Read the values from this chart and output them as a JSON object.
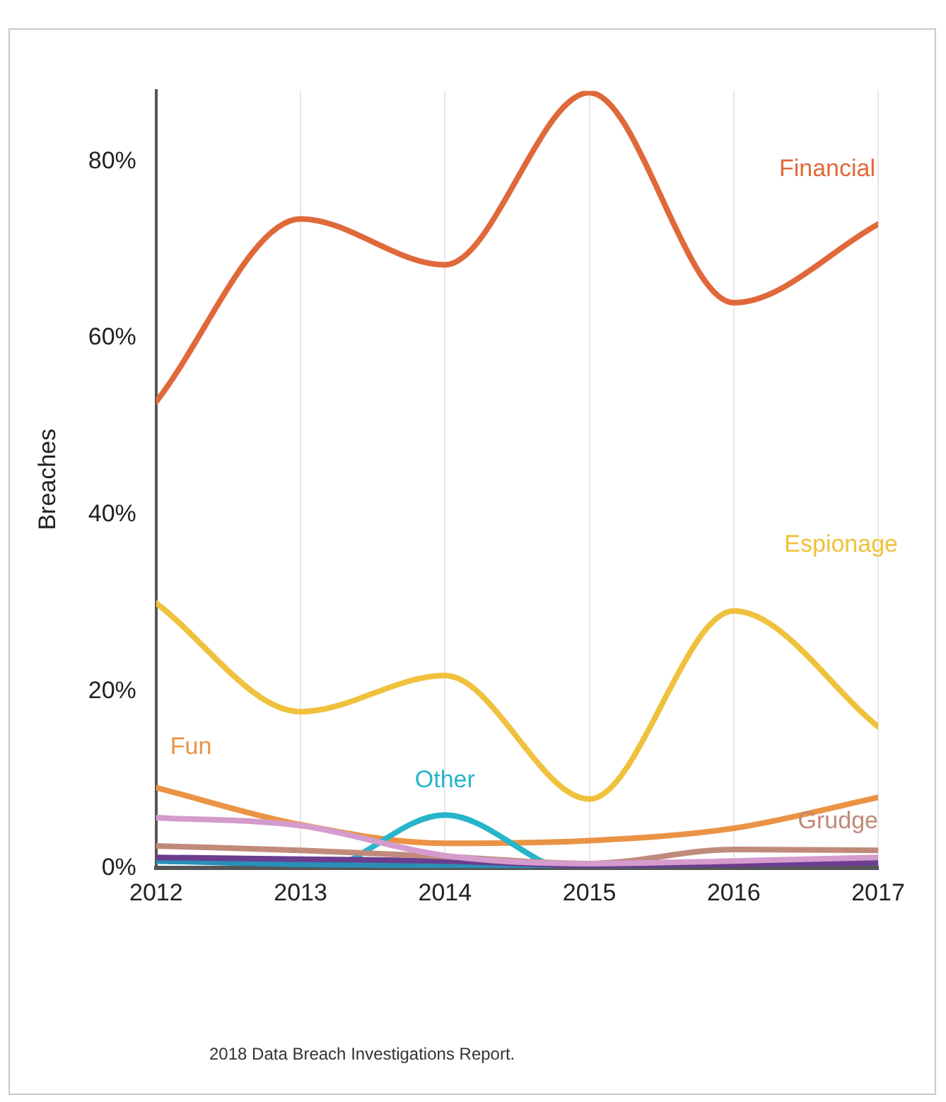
{
  "chart_data": {
    "type": "line",
    "ylabel": "Breaches",
    "x": [
      2012,
      2013,
      2014,
      2015,
      2016,
      2017
    ],
    "xlim": [
      2012,
      2017
    ],
    "xticks": [
      2012,
      2013,
      2014,
      2015,
      2016,
      2017
    ],
    "ylim": [
      0,
      88
    ],
    "yticks": [
      {
        "value": 0,
        "label": "0%"
      },
      {
        "value": 20,
        "label": "20%"
      },
      {
        "value": 40,
        "label": "40%"
      },
      {
        "value": 60,
        "label": "60%"
      },
      {
        "value": 80,
        "label": "80%"
      }
    ],
    "grid": "x",
    "legend": false,
    "marker": "none",
    "line_style": "solid",
    "series": [
      {
        "name": "Financial",
        "color": "#e0693a",
        "values": [
          52.8,
          73.5,
          68.3,
          87.8,
          64,
          72.9
        ]
      },
      {
        "name": "Espionage",
        "color": "#efc13c",
        "values": [
          30,
          17.7,
          21.8,
          7.8,
          29.1,
          16
        ]
      },
      {
        "color": "#d49bcc",
        "values": [
          5.7,
          4.8,
          1.4,
          0.5,
          0.8,
          1.2
        ]
      },
      {
        "name": "Grudge",
        "color": "#c08a7a",
        "values": [
          2.5,
          2.0,
          1.3,
          0.5,
          2.1,
          2.0
        ]
      },
      {
        "color": "#6a3d8f",
        "values": [
          1.2,
          1.0,
          0.8,
          0.3,
          0.4,
          0.6
        ]
      },
      {
        "color": "#2a8fb8",
        "values": [
          0.8,
          0.4,
          0.3,
          0.2,
          0.5,
          0.6
        ]
      },
      {
        "name": "Other",
        "color": "#27b5c9",
        "x": [
          2013.3,
          2014,
          2014.7
        ],
        "values": [
          0.5,
          6,
          0.5
        ]
      },
      {
        "name": "Fun",
        "color": "#eb9345",
        "values": [
          9.1,
          4.9,
          2.8,
          3.1,
          4.5,
          8
        ]
      }
    ],
    "annotations": [
      "2018 Data Breach Investigations Report."
    ]
  }
}
